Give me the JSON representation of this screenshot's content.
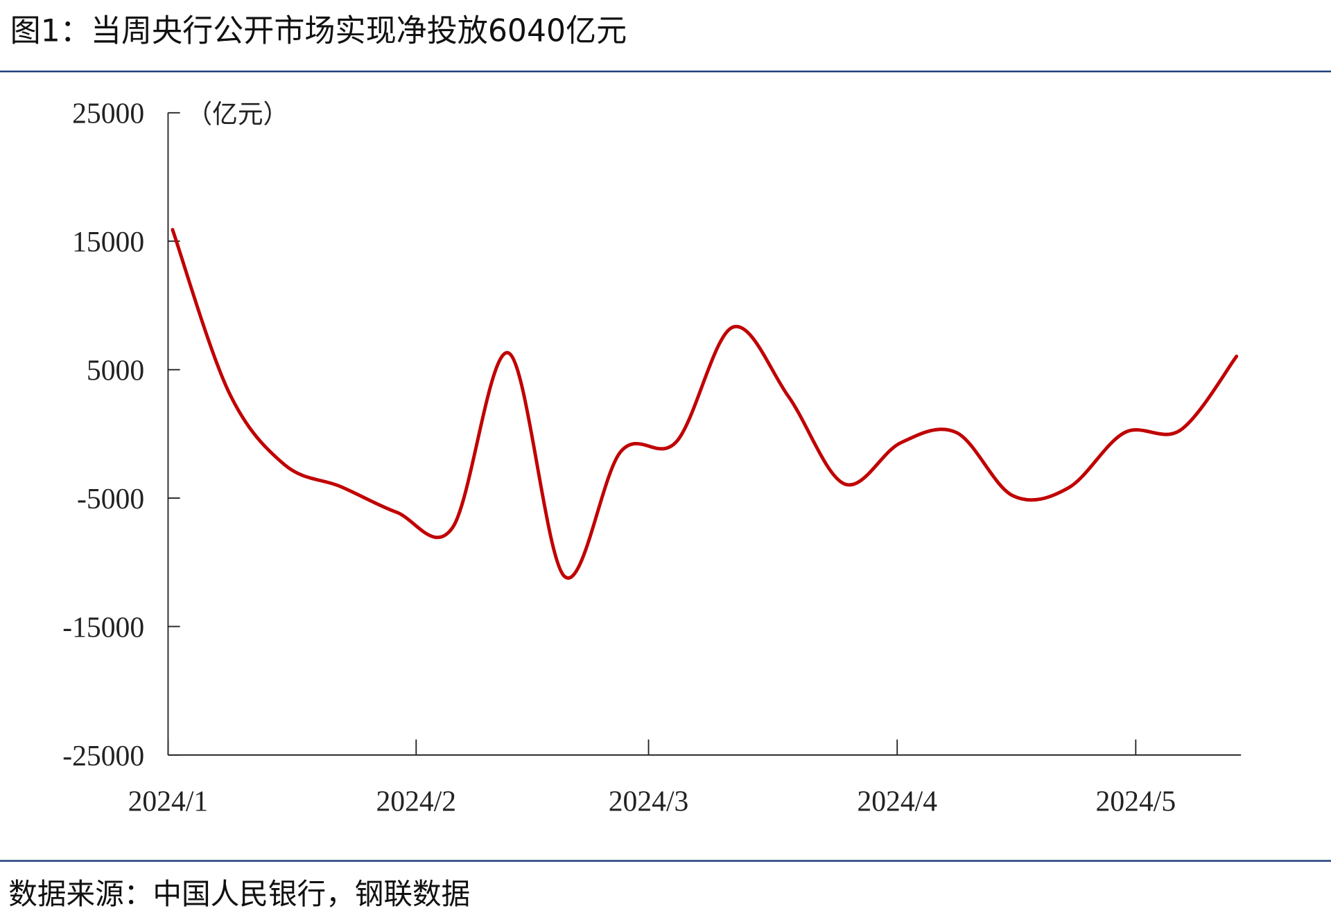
{
  "title": "图1：当周央行公开市场实现净投放6040亿元",
  "source": "数据来源：中国人民银行，钢联数据",
  "chart_data": {
    "type": "line",
    "y_label": "（亿元）",
    "x": [
      0,
      1,
      2,
      3,
      4,
      5,
      6,
      7,
      8,
      9,
      10,
      11,
      12,
      13,
      14,
      15,
      16,
      17,
      18,
      19
    ],
    "series": [
      {
        "name": "净投放",
        "color": "#c00000",
        "values": [
          15900,
          3300,
          -2400,
          -4100,
          -6100,
          -7300,
          6300,
          -11100,
          -1400,
          -600,
          8300,
          2900,
          -3900,
          -700,
          100,
          -4800,
          -4200,
          100,
          300,
          6040
        ]
      }
    ],
    "xlim": [
      -0.08,
      19.08
    ],
    "xticks": [
      {
        "value": -0.08,
        "label": "2024/1"
      },
      {
        "value": 4.35,
        "label": "2024/2"
      },
      {
        "value": 8.5,
        "label": "2024/3"
      },
      {
        "value": 12.94,
        "label": "2024/4"
      },
      {
        "value": 17.2,
        "label": "2024/5"
      }
    ],
    "ylim": [
      -25000,
      25000
    ],
    "yticks": [
      25000,
      15000,
      5000,
      -5000,
      -15000,
      -25000
    ]
  }
}
